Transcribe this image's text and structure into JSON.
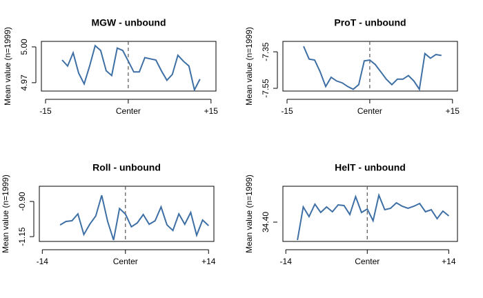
{
  "chart_data": [
    {
      "type": "line",
      "title": "MGW - unbound",
      "ylabel": "Mean value (n=1999)",
      "color": "#3d6fa5",
      "x": [
        -12,
        -11,
        -10,
        -9,
        -8,
        -7,
        -6,
        -5,
        -4,
        -3,
        -2,
        -1,
        0,
        1,
        2,
        3,
        4,
        5,
        6,
        7,
        8,
        9,
        10,
        11,
        12,
        13
      ],
      "values": [
        4.989,
        4.984,
        4.995,
        4.978,
        4.969,
        4.984,
        5.001,
        4.997,
        4.98,
        4.976,
        4.999,
        4.997,
        4.988,
        4.979,
        4.979,
        4.991,
        4.99,
        4.989,
        4.98,
        4.972,
        4.977,
        4.993,
        4.988,
        4.984,
        4.964,
        4.973
      ],
      "xlim": [
        -15.75,
        15.9
      ],
      "ylim": [
        4.963,
        5.0046
      ],
      "xticks": [
        -15,
        {
          "value": 0,
          "label": "Center"
        },
        {
          "value": 15,
          "label": "+15"
        }
      ],
      "yticks": [
        4.97,
        {
          "value": 5,
          "label": "5.00"
        }
      ]
    },
    {
      "type": "line",
      "title": "ProT - unbound",
      "ylabel": "Mean value (n=1999)",
      "color": "#3d6fa5",
      "x": [
        -12,
        -11,
        -10,
        -9,
        -8,
        -7,
        -6,
        -5,
        -4,
        -3,
        -2,
        -1,
        0,
        1,
        2,
        3,
        4,
        5,
        6,
        7,
        8,
        9,
        10,
        11,
        12,
        13
      ],
      "values": [
        -7.32,
        -7.39,
        -7.395,
        -7.46,
        -7.54,
        -7.49,
        -7.51,
        -7.52,
        -7.54,
        -7.555,
        -7.53,
        -7.4,
        -7.395,
        -7.42,
        -7.46,
        -7.5,
        -7.53,
        -7.5,
        -7.5,
        -7.48,
        -7.51,
        -7.555,
        -7.36,
        -7.385,
        -7.365,
        -7.37
      ],
      "xlim": [
        -15.75,
        15.9
      ],
      "ylim": [
        -7.565,
        -7.293
      ],
      "xticks": [
        -15,
        {
          "value": 0,
          "label": "Center"
        },
        {
          "value": 15,
          "label": "+15"
        }
      ],
      "yticks": [
        -7.55,
        -7.35
      ]
    },
    {
      "type": "line",
      "title": "Roll - unbound",
      "ylabel": "Mean value (n=1999)",
      "color": "#3d6fa5",
      "x": [
        -11,
        -10,
        -9,
        -8,
        -7,
        -6,
        -5,
        -4,
        -3,
        -2,
        -1,
        0,
        1,
        2,
        3,
        4,
        5,
        6,
        7,
        8,
        9,
        10,
        11,
        12,
        13,
        14
      ],
      "values": [
        -1.067,
        -1.042,
        -1.037,
        -0.988,
        -1.135,
        -1.062,
        -1.003,
        -0.856,
        -1.042,
        -1.174,
        -0.95,
        -0.99,
        -1.08,
        -1.052,
        -0.993,
        -1.062,
        -1.037,
        -0.939,
        -1.067,
        -1.106,
        -0.988,
        -1.062,
        -0.978,
        -1.14,
        -1.032,
        -1.072
      ],
      "xlim": [
        -14.5,
        14.9
      ],
      "ylim": [
        -1.184,
        -0.792
      ],
      "xticks": [
        -14,
        {
          "value": 0,
          "label": "Center"
        },
        {
          "value": 14,
          "label": "+14"
        }
      ],
      "yticks": [
        -1.15,
        {
          "value": -0.9,
          "label": "-0.90"
        }
      ]
    },
    {
      "type": "line",
      "title": "HelT - unbound",
      "ylabel": "Mean value (n=1999)",
      "color": "#3d6fa5",
      "x": [
        -12,
        -11,
        -10,
        -9,
        -8,
        -7,
        -6,
        -5,
        -4,
        -3,
        -2,
        -1,
        0,
        1,
        2,
        3,
        4,
        5,
        6,
        7,
        8,
        9,
        10,
        11,
        12,
        13,
        14
      ],
      "values": [
        34.296,
        34.488,
        34.432,
        34.504,
        34.456,
        34.488,
        34.46,
        34.5,
        34.496,
        34.444,
        34.548,
        34.456,
        34.476,
        34.408,
        34.556,
        34.472,
        34.48,
        34.512,
        34.492,
        34.48,
        34.492,
        34.508,
        34.46,
        34.472,
        34.42,
        34.464,
        34.436
      ],
      "xlim": [
        -14.5,
        15.5
      ],
      "ylim": [
        34.288,
        34.608
      ],
      "xticks": [
        -14,
        {
          "value": 0,
          "label": "Center"
        },
        {
          "value": 14,
          "label": "+14"
        }
      ],
      "yticks": [
        {
          "value": 34.4,
          "label": "34.40"
        }
      ]
    }
  ]
}
